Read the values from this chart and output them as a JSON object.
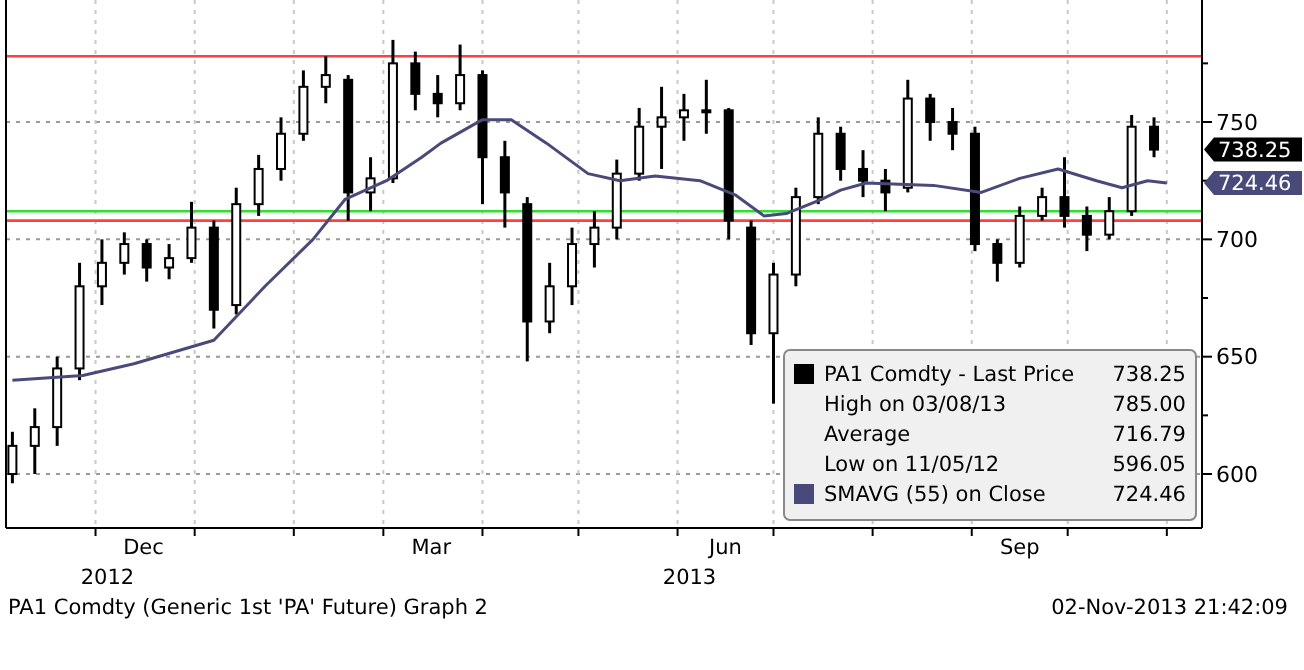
{
  "chart_data": {
    "type": "candlestick",
    "xlim": [
      "2012-11-03",
      "2013-11-12"
    ],
    "ylim": [
      577,
      802
    ],
    "xticks": [
      {
        "value": "2012-12-01",
        "label": null
      },
      {
        "value": "2012-12-16",
        "label": "Dec"
      },
      {
        "value": "2013-01-01",
        "label": null
      },
      {
        "value": "2013-02-01",
        "label": null
      },
      {
        "value": "2013-03-01",
        "label": null
      },
      {
        "value": "2013-03-16",
        "label": "Mar"
      },
      {
        "value": "2013-04-01",
        "label": null
      },
      {
        "value": "2013-05-01",
        "label": null
      },
      {
        "value": "2013-06-01",
        "label": null
      },
      {
        "value": "2013-06-16",
        "label": "Jun"
      },
      {
        "value": "2013-07-01",
        "label": null
      },
      {
        "value": "2013-08-01",
        "label": null
      },
      {
        "value": "2013-09-01",
        "label": null
      },
      {
        "value": "2013-09-16",
        "label": "Sep"
      },
      {
        "value": "2013-10-01",
        "label": null
      },
      {
        "value": "2013-11-01",
        "label": null
      }
    ],
    "yticks": [
      600,
      {
        "value": 625,
        "label": null
      },
      650,
      {
        "value": 675,
        "label": null
      },
      700,
      {
        "value": 725,
        "label": null
      },
      750,
      {
        "value": 775,
        "label": null
      }
    ],
    "grid": true,
    "legend": "bottom right",
    "series": [
      {
        "name": "PA1 Comdty - Last Price",
        "color": "#000000",
        "x": [
          "2012-11-05",
          "2012-11-12",
          "2012-11-19",
          "2012-11-26",
          "2012-12-03",
          "2012-12-10",
          "2012-12-17",
          "2012-12-24",
          "2012-12-31",
          "2013-01-07",
          "2013-01-14",
          "2013-01-21",
          "2013-01-28",
          "2013-02-04",
          "2013-02-11",
          "2013-02-18",
          "2013-02-25",
          "2013-03-04",
          "2013-03-11",
          "2013-03-18",
          "2013-03-25",
          "2013-04-01",
          "2013-04-08",
          "2013-04-15",
          "2013-04-22",
          "2013-04-29",
          "2013-05-06",
          "2013-05-13",
          "2013-05-20",
          "2013-05-27",
          "2013-06-03",
          "2013-06-10",
          "2013-06-17",
          "2013-06-24",
          "2013-07-01",
          "2013-07-08",
          "2013-07-15",
          "2013-07-22",
          "2013-07-29",
          "2013-08-05",
          "2013-08-12",
          "2013-08-19",
          "2013-08-26",
          "2013-09-02",
          "2013-09-09",
          "2013-09-16",
          "2013-09-23",
          "2013-09-30",
          "2013-10-07",
          "2013-10-14",
          "2013-10-21",
          "2013-10-28"
        ],
        "ohlc": [
          [
            600,
            618,
            596.05,
            612
          ],
          [
            612,
            628,
            600,
            620
          ],
          [
            620,
            650,
            612,
            645
          ],
          [
            645,
            690,
            640,
            680
          ],
          [
            680,
            700,
            672,
            690
          ],
          [
            690,
            703,
            685,
            698
          ],
          [
            698,
            700,
            682,
            688
          ],
          [
            688,
            698,
            683,
            692
          ],
          [
            692,
            716,
            690,
            705
          ],
          [
            705,
            708,
            662,
            670
          ],
          [
            672,
            722,
            668,
            715
          ],
          [
            715,
            736,
            710,
            730
          ],
          [
            730,
            752,
            725,
            745
          ],
          [
            745,
            772,
            742,
            765
          ],
          [
            765,
            778,
            758,
            770
          ],
          [
            768,
            770,
            708,
            720
          ],
          [
            720,
            735,
            712,
            726
          ],
          [
            726,
            785,
            724,
            775
          ],
          [
            775,
            780,
            755,
            762
          ],
          [
            762,
            770,
            752,
            758
          ],
          [
            758,
            783,
            755,
            770
          ],
          [
            770,
            772,
            715,
            735
          ],
          [
            735,
            742,
            705,
            720
          ],
          [
            715,
            718,
            648,
            665
          ],
          [
            665,
            690,
            660,
            680
          ],
          [
            680,
            705,
            672,
            698
          ],
          [
            698,
            712,
            688,
            705
          ],
          [
            705,
            734,
            700,
            728
          ],
          [
            728,
            756,
            725,
            748
          ],
          [
            748,
            765,
            730,
            752
          ],
          [
            752,
            762,
            742,
            755
          ],
          [
            755,
            768,
            745,
            755
          ],
          [
            755,
            756,
            700,
            708
          ],
          [
            705,
            708,
            655,
            660
          ],
          [
            660,
            690,
            630,
            685
          ],
          [
            685,
            722,
            680,
            718
          ],
          [
            718,
            752,
            715,
            745
          ],
          [
            745,
            748,
            725,
            730
          ],
          [
            730,
            738,
            718,
            725
          ],
          [
            725,
            730,
            712,
            720
          ],
          [
            722,
            768,
            720,
            760
          ],
          [
            760,
            762,
            742,
            750
          ],
          [
            750,
            756,
            738,
            745
          ],
          [
            745,
            748,
            695,
            698
          ],
          [
            698,
            700,
            682,
            690
          ],
          [
            690,
            714,
            688,
            710
          ],
          [
            710,
            722,
            708,
            718
          ],
          [
            718,
            735,
            705,
            710
          ],
          [
            710,
            714,
            695,
            702
          ],
          [
            702,
            718,
            700,
            712
          ],
          [
            712,
            753,
            710,
            748
          ],
          [
            748,
            752,
            735,
            738.25
          ]
        ]
      },
      {
        "type": "line",
        "name": "SMAVG (55) on Close",
        "color": "#4a4a7a",
        "x": [
          "2012-11-05",
          "2012-11-27",
          "2012-12-13",
          "2013-01-07",
          "2013-01-23",
          "2013-02-07",
          "2013-02-17",
          "2013-03-02",
          "2013-03-13",
          "2013-03-19",
          "2013-04-01",
          "2013-04-10",
          "2013-04-21",
          "2013-05-04",
          "2013-05-14",
          "2013-05-25",
          "2013-06-08",
          "2013-06-19",
          "2013-06-28",
          "2013-07-05",
          "2013-07-16",
          "2013-07-22",
          "2013-07-30",
          "2013-08-20",
          "2013-09-04",
          "2013-09-16",
          "2013-09-28",
          "2013-10-10",
          "2013-10-18",
          "2013-10-26",
          "2013-11-01"
        ],
        "values": [
          640,
          642,
          647,
          657,
          680,
          700,
          717,
          725,
          735,
          741,
          751,
          751,
          741,
          728,
          725,
          727,
          725,
          719,
          710,
          711,
          717,
          721,
          724,
          723,
          720,
          726,
          730,
          725,
          722,
          725,
          724
        ]
      }
    ],
    "ref_lines": [
      {
        "axis": "y",
        "value": 778,
        "color": "#ff4040"
      },
      {
        "axis": "y",
        "value": 708,
        "color": "#ff4040"
      },
      {
        "axis": "y",
        "value": 712,
        "color": "#33dd33"
      }
    ],
    "annotations": [
      "High on 03/08/13 785.00",
      "Average 716.79",
      "Low on 11/05/12 596.05",
      "738.25",
      "724.46",
      "2012",
      "2013",
      "PA1 Comdty (Generic 1st 'PA' Future) Graph 2",
      "02-Nov-2013 21:42:09"
    ]
  }
}
